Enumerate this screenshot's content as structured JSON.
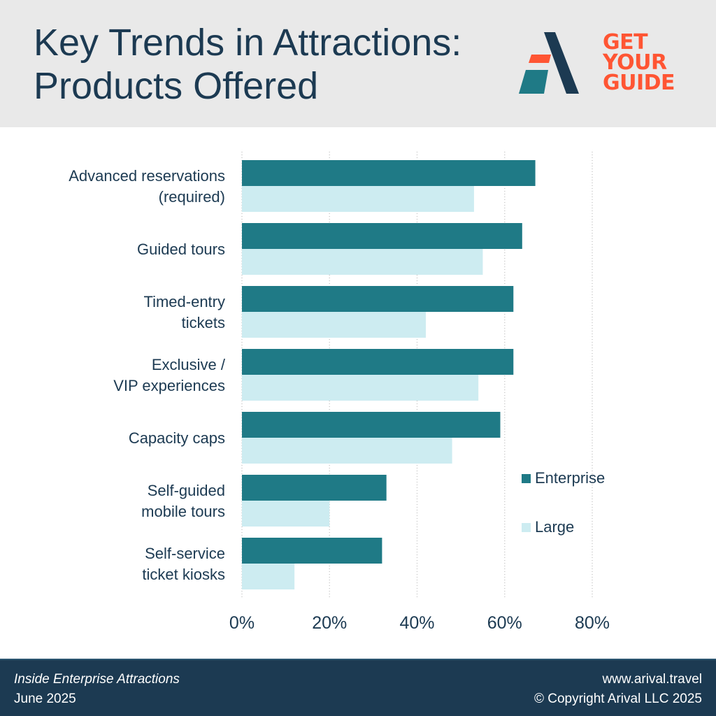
{
  "header": {
    "title_line1": "Key Trends in Attractions:",
    "title_line2": "Products Offered",
    "logo_text": [
      "GET",
      "YOUR",
      "GUIDE"
    ]
  },
  "colors": {
    "enterprise": "#1f7a86",
    "large": "#cdecf1",
    "title": "#1c3a52",
    "footer_bg": "#1c3a52",
    "logo_orange": "#ff5533",
    "grid": "#c9c9c9"
  },
  "chart_data": {
    "type": "bar",
    "orientation": "horizontal",
    "categories": [
      [
        "Advanced reservations",
        "(required)"
      ],
      [
        "Guided tours"
      ],
      [
        "Timed-entry",
        "tickets"
      ],
      [
        "Exclusive /",
        "VIP experiences"
      ],
      [
        "Capacity caps"
      ],
      [
        "Self-guided",
        "mobile tours"
      ],
      [
        "Self-service",
        "ticket kiosks"
      ]
    ],
    "series": [
      {
        "name": "Enterprise",
        "values": [
          67,
          64,
          62,
          62,
          59,
          33,
          32
        ]
      },
      {
        "name": "Large",
        "values": [
          53,
          55,
          42,
          54,
          48,
          20,
          12
        ]
      }
    ],
    "xlim": [
      0,
      80
    ],
    "xticks": [
      0,
      20,
      40,
      60,
      80
    ],
    "tick_format": "{v}%",
    "grid": "vertical dotted",
    "legend_position": "right"
  },
  "footer": {
    "left_line1": "Inside Enterprise Attractions",
    "left_line2": "June 2025",
    "right_line1": "www.arival.travel",
    "right_line2": "© Copyright Arival LLC 2025"
  }
}
